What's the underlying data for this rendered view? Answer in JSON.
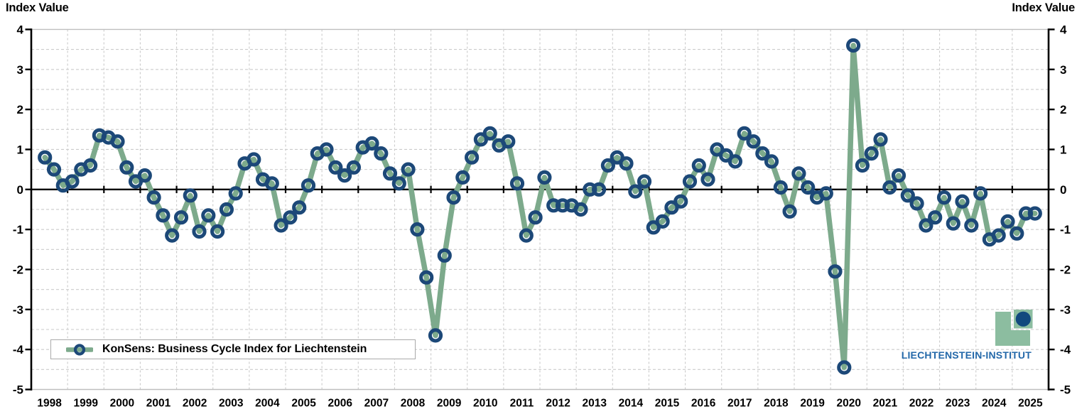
{
  "titles": {
    "left": "Index Value",
    "right": "Index Value"
  },
  "legend": {
    "label": "KonSens: Business Cycle Index for Liechtenstein"
  },
  "logo": {
    "text": "LIECHTENSTEIN-INSTITUT",
    "icon": "green-L-square-with-navy-circle"
  },
  "colors": {
    "line_green": "#7DAA8C",
    "marker_navy": "#1C4878",
    "grid_gray": "#CBCBCB",
    "plot_border_gray": "#BFBFBF",
    "axis_black": "#000000",
    "text_black": "#000000",
    "legend_border": "#A9A9A9",
    "logo_green": "#8CBDA0",
    "logo_navy": "#12497E",
    "logo_text_blue": "#2368A9",
    "background": "#FFFFFF"
  },
  "chart_data": {
    "type": "line",
    "title": "",
    "ylabel": "Index Value",
    "xlabel": "",
    "legend_position": "bottom-left",
    "grid": "dashed, 0.5 vertical steps and yearly x steps",
    "ylim": [
      -5,
      4
    ],
    "y_minor_step": 0.5,
    "y_ticks": [
      4,
      3,
      2,
      1,
      0,
      -1,
      -2,
      -3,
      -4,
      -5
    ],
    "x_year_labels": [
      "1998",
      "1999",
      "2000",
      "2001",
      "2002",
      "2003",
      "2004",
      "2005",
      "2006",
      "2007",
      "2008",
      "2009",
      "2010",
      "2011",
      "2012",
      "2013",
      "2014",
      "2015",
      "2016",
      "2017",
      "2018",
      "2019",
      "2020",
      "2021",
      "2022",
      "2023",
      "2024",
      "2025"
    ],
    "frequency": "quarterly",
    "start": {
      "year": 1998,
      "quarter": 2
    },
    "end_label": "2025 Q3",
    "series": [
      {
        "name": "KonSens: Business Cycle Index for Liechtenstein",
        "values": [
          0.8,
          0.5,
          0.1,
          0.2,
          0.5,
          0.6,
          1.35,
          1.3,
          1.2,
          0.55,
          0.2,
          0.35,
          -0.2,
          -0.65,
          -1.15,
          -0.7,
          -0.15,
          -1.05,
          -0.65,
          -1.05,
          -0.5,
          -0.1,
          0.65,
          0.75,
          0.25,
          0.15,
          -0.9,
          -0.7,
          -0.45,
          0.1,
          0.9,
          1.0,
          0.55,
          0.35,
          0.55,
          1.05,
          1.15,
          0.9,
          0.4,
          0.15,
          0.5,
          -1.0,
          -2.2,
          -3.65,
          -1.65,
          -0.2,
          0.3,
          0.8,
          1.25,
          1.4,
          1.1,
          1.2,
          0.15,
          -1.15,
          -0.7,
          0.3,
          -0.4,
          -0.4,
          -0.4,
          -0.5,
          0.0,
          0.0,
          0.6,
          0.8,
          0.65,
          -0.05,
          0.2,
          -0.95,
          -0.8,
          -0.45,
          -0.3,
          0.2,
          0.6,
          0.25,
          1.0,
          0.85,
          0.7,
          1.4,
          1.2,
          0.9,
          0.7,
          0.05,
          -0.55,
          0.4,
          0.05,
          -0.2,
          -0.1,
          -2.05,
          -4.45,
          3.6,
          0.6,
          0.9,
          1.25,
          0.05,
          0.35,
          -0.15,
          -0.35,
          -0.9,
          -0.7,
          -0.2,
          -0.85,
          -0.3,
          -0.9,
          -0.1,
          -1.25,
          -1.15,
          -0.8,
          -1.1,
          -0.6,
          -0.6
        ]
      }
    ]
  }
}
